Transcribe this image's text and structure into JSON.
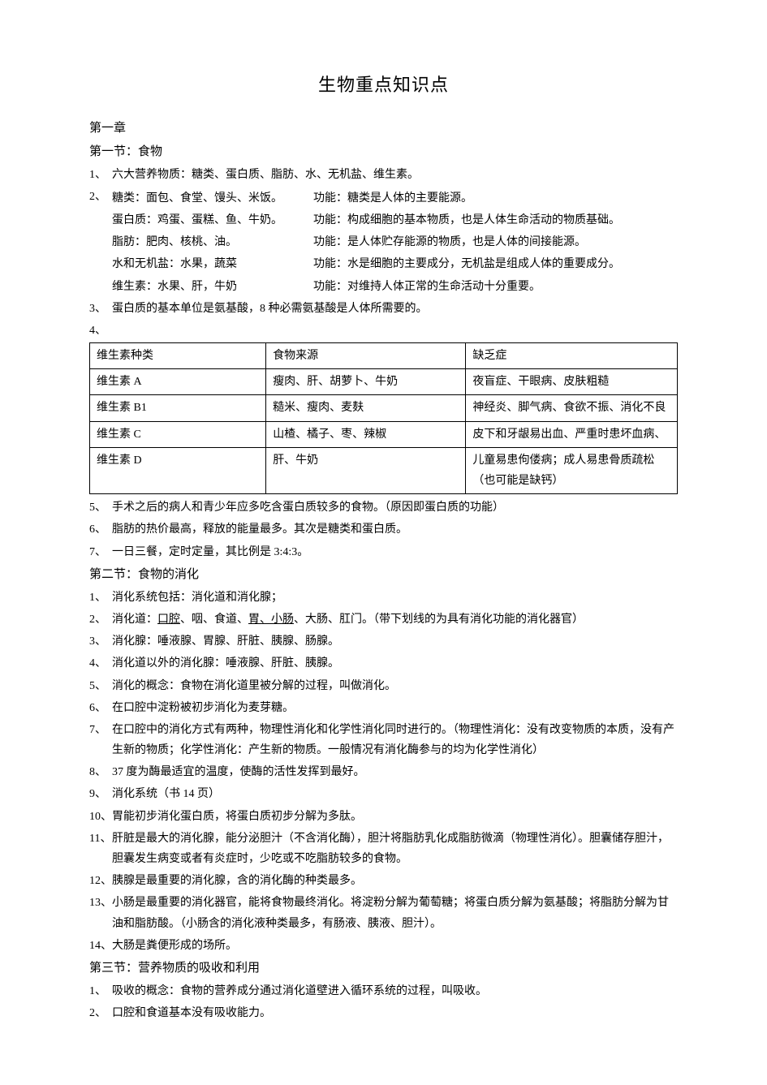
{
  "title": "生物重点知识点",
  "chapter1": "第一章",
  "section1": {
    "heading": "第一节：食物",
    "items": [
      {
        "num": "1、",
        "text": "六大营养物质：糖类、蛋白质、脂肪、水、无机盐、维生素。"
      },
      {
        "num": "2、",
        "cols": [
          {
            "label": "糖类：面包、食堂、馒头、米饭。",
            "func": "功能：糖类是人体的主要能源。"
          },
          {
            "label": "蛋白质：鸡蛋、蛋糕、鱼、牛奶。",
            "func": "功能：构成细胞的基本物质，也是人体生命活动的物质基础。"
          },
          {
            "label": "脂肪：肥肉、核桃、油。",
            "func": "功能：是人体贮存能源的物质，也是人体的间接能源。"
          },
          {
            "label": "水和无机盐：水果，蔬菜",
            "func": "功能：水是细胞的主要成分，无机盐是组成人体的重要成分。"
          },
          {
            "label": "维生素：水果、肝，牛奶",
            "func": "功能：对维持人体正常的生命活动十分重要。"
          }
        ]
      },
      {
        "num": "3、",
        "text": "蛋白质的基本单位是氨基酸，8 种必需氨基酸是人体所需要的。"
      },
      {
        "num": "4、",
        "text": ""
      }
    ]
  },
  "table": {
    "headers": [
      "维生素种类",
      "食物来源",
      "缺乏症"
    ],
    "rows": [
      [
        "维生素 A",
        "瘦肉、肝、胡萝卜、牛奶",
        "夜盲症、干眼病、皮肤粗糙"
      ],
      [
        "维生素 B1",
        "糙米、瘦肉、麦麸",
        "神经炎、脚气病、食欲不振、消化不良"
      ],
      [
        "维生素 C",
        "山楂、橘子、枣、辣椒",
        "皮下和牙龈易出血、严重时患坏血病、"
      ],
      [
        "维生素 D",
        "肝、牛奶",
        "儿童易患佝偻病；成人易患骨质疏松（也可能是缺钙）"
      ]
    ]
  },
  "section1_cont": [
    {
      "num": "5、",
      "text": "手术之后的病人和青少年应多吃含蛋白质较多的食物。（原因即蛋白质的功能）"
    },
    {
      "num": "6、",
      "text": "脂肪的热价最高，释放的能量最多。其次是糖类和蛋白质。"
    },
    {
      "num": "7、",
      "text": "一日三餐，定时定量，其比例是 3:4:3。"
    }
  ],
  "section2": {
    "heading": "第二节：食物的消化",
    "items": [
      {
        "num": "1、",
        "text": "消化系统包括：消化道和消化腺；"
      },
      {
        "num": "2、",
        "pre": "消化道：",
        "u1": "口腔",
        "mid1": "、咽、食道、",
        "u2": "胃、小肠",
        "mid2": "、大肠、肛门。（带下划线的为具有消化功能的消化器官）"
      },
      {
        "num": "3、",
        "text": "消化腺：唾液腺、胃腺、肝脏、胰腺、肠腺。"
      },
      {
        "num": "4、",
        "text": "消化道以外的消化腺：唾液腺、肝脏、胰腺。"
      },
      {
        "num": "5、",
        "text": "消化的概念：食物在消化道里被分解的过程，叫做消化。"
      },
      {
        "num": "6、",
        "text": "在口腔中淀粉被初步消化为麦芽糖。"
      },
      {
        "num": "7、",
        "text": "在口腔中的消化方式有两种，物理性消化和化学性消化同时进行的。（物理性消化：没有改变物质的本质，没有产生新的物质；化学性消化：产生新的物质。一般情况有消化酶参与的均为化学性消化）"
      },
      {
        "num": "8、",
        "text": "37 度为酶最适宜的温度，使酶的活性发挥到最好。"
      },
      {
        "num": "9、",
        "text": "消化系统（书 14 页）"
      },
      {
        "num": "10、",
        "text": "胃能初步消化蛋白质，将蛋白质初步分解为多肽。"
      },
      {
        "num": "11、",
        "text": "肝脏是最大的消化腺，能分泌胆汁（不含消化酶），胆汁将脂肪乳化成脂肪微滴（物理性消化）。胆囊储存胆汁，胆囊发生病变或者有炎症时，少吃或不吃脂肪较多的食物。"
      },
      {
        "num": "12、",
        "text": "胰腺是最重要的消化腺，含的消化酶的种类最多。"
      },
      {
        "num": "13、",
        "text": "小肠是最重要的消化器官，能将食物最终消化。将淀粉分解为葡萄糖；将蛋白质分解为氨基酸；将脂肪分解为甘油和脂肪酸。（小肠含的消化液种类最多，有肠液、胰液、胆汁）。"
      },
      {
        "num": "14、",
        "text": "大肠是粪便形成的场所。"
      }
    ]
  },
  "section3": {
    "heading": "第三节：营养物质的吸收和利用",
    "items": [
      {
        "num": "1、",
        "text": "吸收的概念：食物的营养成分通过消化道壁进入循环系统的过程，叫吸收。"
      },
      {
        "num": "2、",
        "text": "口腔和食道基本没有吸收能力。"
      }
    ]
  }
}
